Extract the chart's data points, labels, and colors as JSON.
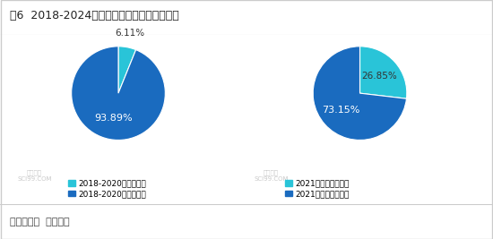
{
  "title": "图6  2018-2024年粉壳、褐壳鸡蛋价差统计图",
  "pie1": {
    "values": [
      6.11,
      93.89
    ],
    "colors": [
      "#29c4d8",
      "#1a6bbf"
    ],
    "labels": [
      "6.11%",
      "93.89%"
    ],
    "legend": [
      "2018-2020年负值时间",
      "2018-2020年正值时间"
    ],
    "startangle": 90,
    "label_colors": [
      "#333333",
      "#ffffff"
    ]
  },
  "pie2": {
    "values": [
      26.85,
      73.15
    ],
    "colors": [
      "#29c4d8",
      "#1a6bbf"
    ],
    "labels": [
      "26.85%",
      "73.15%"
    ],
    "legend": [
      "2021年至今负值时间",
      "2021年至今正值时间"
    ],
    "startangle": 90,
    "label_colors": [
      "#333333",
      "#ffffff"
    ]
  },
  "source": "数据来源：  卓创资讯",
  "bg_color": "#ffffff",
  "title_color": "#222222",
  "source_color": "#444444",
  "border_color": "#cccccc",
  "title_bar_color": "#1a6bbf"
}
